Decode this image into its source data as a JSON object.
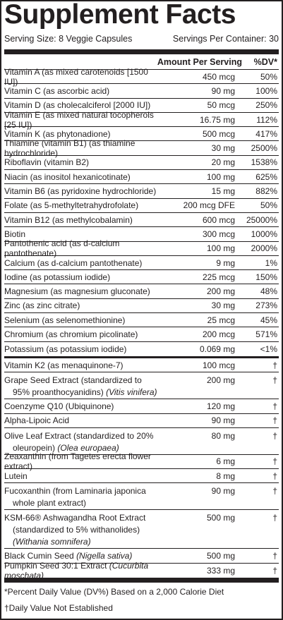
{
  "title": "Supplement Facts",
  "serving_size": "Serving Size: 8 Veggie Capsules",
  "servings_per_container": "Servings Per Container: 30",
  "header": {
    "amount": "Amount Per Serving",
    "dv": "%DV*"
  },
  "nutrients": [
    {
      "name": "Vitamin A (as mixed carotenoids [1500 IU])",
      "amount": "450 mcg",
      "dv": "50%"
    },
    {
      "name": "Vitamin C (as ascorbic acid)",
      "amount": "90 mg",
      "dv": "100%"
    },
    {
      "name": "Vitamin D (as cholecalciferol [2000 IU])",
      "amount": "50 mcg",
      "dv": "250%"
    },
    {
      "name": "Vitamin E (as mixed natural tocopherols [25 IU])",
      "amount": "16.75 mg",
      "dv": "112%"
    },
    {
      "name": "Vitamin K (as phytonadione)",
      "amount": "500 mcg",
      "dv": "417%"
    },
    {
      "name": "Thiamine (vitamin B1) (as thiamine hydrochloride)",
      "amount": "30 mg",
      "dv": "2500%"
    },
    {
      "name": "Riboflavin (vitamin B2)",
      "amount": "20 mg",
      "dv": "1538%"
    },
    {
      "name": "Niacin (as inositol hexanicotinate)",
      "amount": "100 mg",
      "dv": "625%"
    },
    {
      "name": "Vitamin B6 (as pyridoxine hydrochloride)",
      "amount": "15 mg",
      "dv": "882%"
    },
    {
      "name": "Folate (as 5-methyltetrahydrofolate)",
      "amount": "200 mcg DFE",
      "dv": "50%"
    },
    {
      "name": "Vitamin B12 (as methylcobalamin)",
      "amount": "600 mcg",
      "dv": "25000%"
    },
    {
      "name": "Biotin",
      "amount": "300 mcg",
      "dv": "1000%"
    },
    {
      "name": "Pantothenic acid (as d-calcium pantothenate)",
      "amount": "100 mg",
      "dv": "2000%"
    },
    {
      "name": "Calcium (as d-calcium pantothenate)",
      "amount": "9 mg",
      "dv": "1%"
    },
    {
      "name": "Iodine (as potassium iodide)",
      "amount": "225 mcg",
      "dv": "150%"
    },
    {
      "name": "Magnesium (as magnesium gluconate)",
      "amount": "200 mg",
      "dv": "48%"
    },
    {
      "name": "Zinc (as zinc citrate)",
      "amount": "30 mg",
      "dv": "273%"
    },
    {
      "name": "Selenium (as selenomethionine)",
      "amount": "25 mcg",
      "dv": "45%"
    },
    {
      "name": "Chromium (as chromium picolinate)",
      "amount": "200 mcg",
      "dv": "571%"
    },
    {
      "name": "Potassium (as potassium iodide)",
      "amount": "0.069 mg",
      "dv": "<1%"
    }
  ],
  "others": [
    {
      "name": "Vitamin K2 (as menaquinone-7)",
      "amount": "100 mcg",
      "dv": "†"
    },
    {
      "name": "Grape Seed Extract (standardized to 95% proanthocyanidins)",
      "latin": "(Vitis vinifera)",
      "amount": "200 mg",
      "dv": "†"
    },
    {
      "name": "Coenzyme Q10 (Ubiquinone)",
      "amount": "120 mg",
      "dv": "†"
    },
    {
      "name": "Alpha-Lipoic Acid",
      "amount": "90 mg",
      "dv": "†"
    },
    {
      "name": "Olive Leaf Extract (standardized to 20% oleuropein)",
      "latin": "(Olea europaea)",
      "amount": "80 mg",
      "dv": "†"
    },
    {
      "name": "Zeaxanthin (from Tagetes erecta flower extract)",
      "amount": "6 mg",
      "dv": "†"
    },
    {
      "name": "Lutein",
      "amount": "8 mg",
      "dv": "†"
    },
    {
      "name": "Fucoxanthin (from Laminaria japonica whole plant extract)",
      "amount": "90 mg",
      "dv": "†"
    },
    {
      "name": "KSM-66® Ashwagandha Root Extract (standardized to 5% withanolides)",
      "latin": "(Withania somnifera)",
      "amount": "500 mg",
      "dv": "†"
    },
    {
      "name": "Black Cumin Seed",
      "latin": "(Nigella sativa)",
      "amount": "500 mg",
      "dv": "†"
    },
    {
      "name": "Pumpkin Seed 30:1 Extract",
      "latin": "(Cucurbita moschata)",
      "amount": "333 mg",
      "dv": "†"
    }
  ],
  "footnotes": [
    "*Percent Daily Value (DV%) Based on a 2,000 Calorie Diet",
    "†Daily Value Not Established"
  ]
}
